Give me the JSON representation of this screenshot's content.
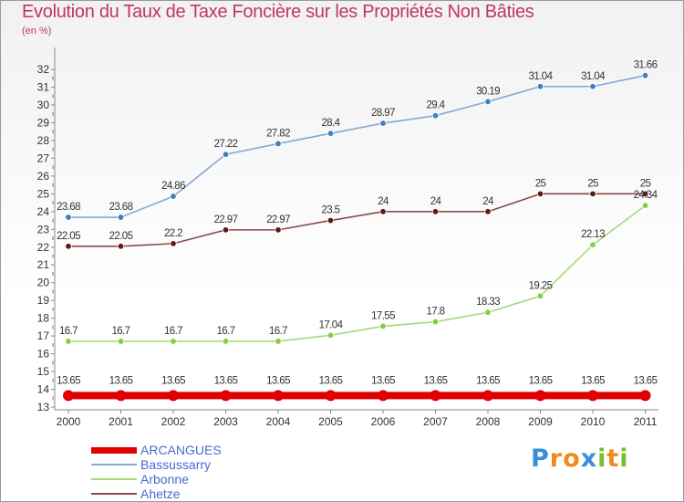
{
  "chart_data": {
    "type": "line",
    "title": "Evolution du Taux de Taxe Foncière sur les Propriétés Non Bâties",
    "unit_label": "(en %)",
    "categories": [
      "2000",
      "2001",
      "2002",
      "2003",
      "2004",
      "2005",
      "2006",
      "2007",
      "2008",
      "2009",
      "2010",
      "2011"
    ],
    "ylim": [
      13,
      32
    ],
    "y_ticks": [
      "13",
      "14",
      "15",
      "16",
      "17",
      "18",
      "19",
      "20",
      "21",
      "22",
      "23",
      "24",
      "25",
      "26",
      "27",
      "28",
      "29",
      "30",
      "31",
      "32"
    ],
    "grid": false,
    "legend_position": "bottom-left",
    "series": [
      {
        "name": "ARCANGUES",
        "color": "#e00000",
        "values": [
          13.65,
          13.65,
          13.65,
          13.65,
          13.65,
          13.65,
          13.65,
          13.65,
          13.65,
          13.65,
          13.65,
          13.65
        ],
        "labels": [
          "13.65",
          "13.65",
          "13.65",
          "13.65",
          "13.65",
          "13.65",
          "13.65",
          "13.65",
          "13.65",
          "13.65",
          "13.65",
          "13.65"
        ]
      },
      {
        "name": "Bassussarry",
        "color": "#84a9d3",
        "marker": "#3f7fc0",
        "values": [
          23.68,
          23.68,
          24.86,
          27.22,
          27.82,
          28.4,
          28.97,
          29.4,
          30.19,
          31.04,
          31.04,
          31.66
        ],
        "labels": [
          "23.68",
          "23.68",
          "24.86",
          "27.22",
          "27.82",
          "28.4",
          "28.97",
          "29.4",
          "30.19",
          "31.04",
          "31.04",
          "31.66"
        ]
      },
      {
        "name": "Arbonne",
        "color": "#a5d97a",
        "marker": "#7fcf3e",
        "values": [
          16.7,
          16.7,
          16.7,
          16.7,
          16.7,
          17.04,
          17.55,
          17.8,
          18.33,
          19.25,
          22.13,
          24.34
        ],
        "labels": [
          "16.7",
          "16.7",
          "16.7",
          "16.7",
          "16.7",
          "17.04",
          "17.55",
          "17.8",
          "18.33",
          "19.25",
          "22.13",
          "24.34"
        ]
      },
      {
        "name": "Ahetze",
        "color": "#8a4a4a",
        "marker": "#5c1a1a",
        "values": [
          22.05,
          22.05,
          22.2,
          22.97,
          22.97,
          23.5,
          24,
          24,
          24,
          25,
          25,
          25
        ],
        "labels": [
          "22.05",
          "22.05",
          "22.2",
          "22.97",
          "22.97",
          "23.5",
          "24",
          "24",
          "24",
          "25",
          "25",
          "25"
        ]
      }
    ]
  },
  "logo": {
    "letters": [
      "P",
      "r",
      "o",
      "x",
      "i",
      "t",
      "i"
    ],
    "colors": [
      "#3a8fd8",
      "#f08a1c",
      "#f08a1c",
      "#3a8fd8",
      "#7bbd2a",
      "#f08a1c",
      "#7bbd2a"
    ]
  }
}
